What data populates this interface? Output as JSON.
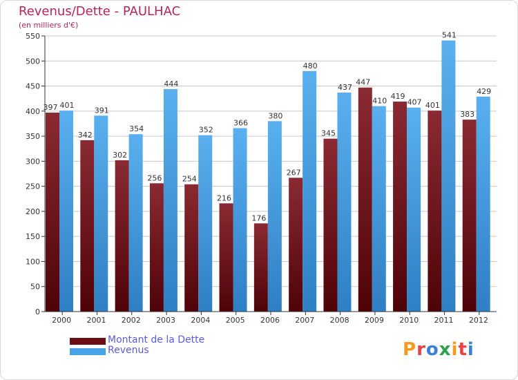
{
  "chart_data": {
    "type": "bar",
    "title": "Revenus/Dette - PAULHAC",
    "subtitle": "(en milliers d'€)",
    "categories": [
      "2000",
      "2001",
      "2002",
      "2003",
      "2004",
      "2005",
      "2006",
      "2007",
      "2008",
      "2009",
      "2010",
      "2011",
      "2012"
    ],
    "series": [
      {
        "name": "Montant de la Dette",
        "color": "#6b0f15",
        "values": [
          397,
          342,
          302,
          256,
          254,
          216,
          176,
          267,
          345,
          447,
          419,
          401,
          383
        ]
      },
      {
        "name": "Revenus",
        "color": "#4aa3e6",
        "values": [
          401,
          391,
          354,
          444,
          352,
          366,
          380,
          480,
          437,
          410,
          407,
          541,
          429
        ]
      }
    ],
    "ylim": [
      0,
      550
    ],
    "yticks": [
      0,
      50,
      100,
      150,
      200,
      250,
      300,
      350,
      400,
      450,
      500,
      550
    ],
    "grid": true,
    "legend": "bottom-left"
  },
  "logo": {
    "letters": [
      {
        "ch": "P",
        "color": "#f39a1f"
      },
      {
        "ch": "r",
        "color": "#e8424b"
      },
      {
        "ch": "o",
        "color": "#3b7fd9"
      },
      {
        "ch": "x",
        "color": "#2aa34a"
      },
      {
        "ch": "i",
        "color": "#f39a1f"
      },
      {
        "ch": "t",
        "color": "#e8424b"
      },
      {
        "ch": "i",
        "color": "#3b7fd9"
      }
    ]
  }
}
